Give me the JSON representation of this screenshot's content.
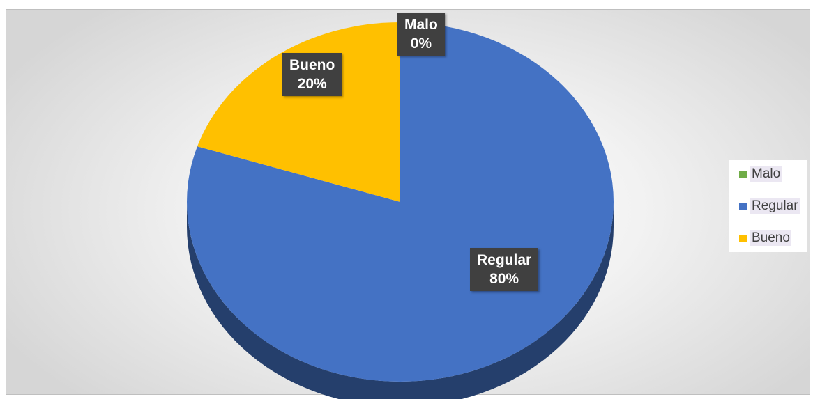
{
  "chart_data": {
    "type": "pie",
    "style": "3d",
    "categories": [
      "Malo",
      "Regular",
      "Bueno"
    ],
    "values": [
      0,
      80,
      20
    ],
    "value_unit": "%",
    "colors": {
      "Malo": "#70ad47",
      "Regular": "#4472c4",
      "Bueno": "#ffc000"
    },
    "data_labels": [
      {
        "category": "Malo",
        "percent": "0%"
      },
      {
        "category": "Regular",
        "percent": "80%"
      },
      {
        "category": "Bueno",
        "percent": "20%"
      }
    ],
    "legend": {
      "placement": "right",
      "entries": [
        "Malo",
        "Regular",
        "Bueno"
      ]
    },
    "title": ""
  }
}
